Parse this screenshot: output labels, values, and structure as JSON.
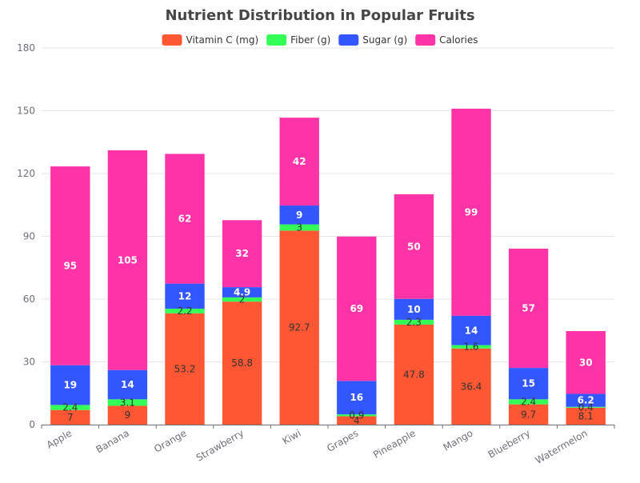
{
  "chart_data": {
    "type": "bar",
    "stacked": true,
    "title": "Nutrient Distribution in Popular Fruits",
    "xlabel": "",
    "ylabel": "",
    "ylim": [
      0,
      180
    ],
    "yticks": [
      0,
      30,
      60,
      90,
      120,
      150,
      180
    ],
    "grid": true,
    "legend_position": "top-center",
    "categories": [
      "Apple",
      "Banana",
      "Orange",
      "Strawberry",
      "Kiwi",
      "Grapes",
      "Pineapple",
      "Mango",
      "Blueberry",
      "Watermelon"
    ],
    "series": [
      {
        "name": "Vitamin C (mg)",
        "color": "#ff5733",
        "label_color": "#333333",
        "values": [
          7,
          9,
          53.2,
          58.8,
          92.7,
          4,
          47.8,
          36.4,
          9.7,
          8.1
        ]
      },
      {
        "name": "Fiber (g)",
        "color": "#33ff57",
        "label_color": "#333333",
        "values": [
          2.4,
          3.1,
          2.2,
          2,
          3,
          0.9,
          2.3,
          1.6,
          2.4,
          0.4
        ]
      },
      {
        "name": "Sugar (g)",
        "color": "#3357ff",
        "label_color": "#ffffff",
        "values": [
          19,
          14,
          12,
          4.9,
          9,
          16,
          10,
          14,
          15,
          6.2
        ]
      },
      {
        "name": "Calories",
        "color": "#ff33a8",
        "label_color": "#ffffff",
        "values": [
          95,
          105,
          62,
          32,
          42,
          69,
          50,
          99,
          57,
          30
        ]
      }
    ]
  }
}
